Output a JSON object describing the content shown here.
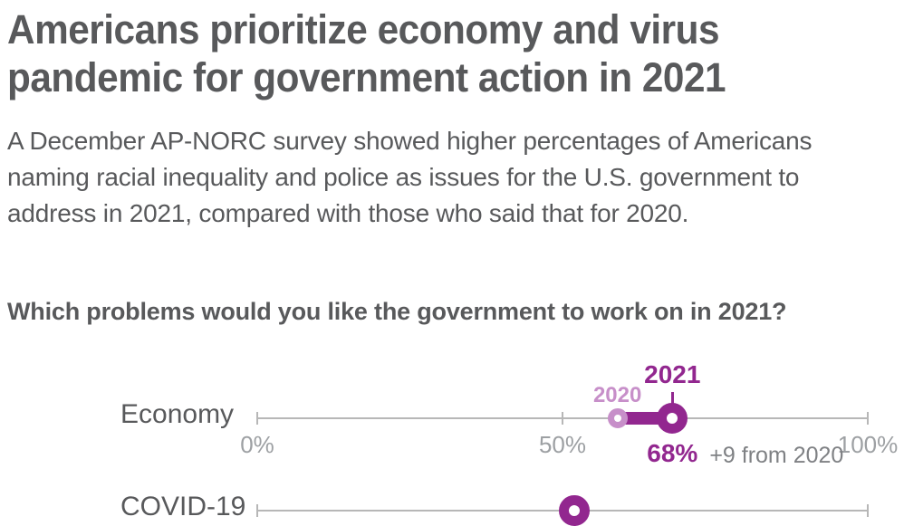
{
  "header": {
    "title_lines": [
      "Americans prioritize economy and virus",
      "pandemic for government action in 2021"
    ],
    "subtitle_lines": [
      "A December AP-NORC survey showed higher percentages of Americans",
      "naming racial inequality and police as issues for the U.S. government to",
      "address in 2021, compared with those who said that for 2020."
    ]
  },
  "chart_data": {
    "type": "dumbbell",
    "title": "Which problems would you like the government to work on in 2021?",
    "axis": {
      "min": 0,
      "max": 100,
      "tick_values": [
        0,
        50,
        100
      ],
      "tick_labels": [
        "0%",
        "50%",
        "100%"
      ]
    },
    "legend": {
      "year_2020_label": "2020",
      "year_2021_label": "2021"
    },
    "colors": {
      "purple_2021": "#92278f",
      "purple_2020": "#c78fc9",
      "axis_gray": "#b7b7b7",
      "tick_text_gray": "#9da0a3",
      "change_text_gray": "#7f8184",
      "body_text_gray": "#58595b"
    },
    "rows": [
      {
        "label": "Economy",
        "value_2020": 59,
        "value_2021": 68,
        "value_label": "68%",
        "change_label": "+9 from 2020",
        "show_axis_labels": true,
        "show_year_labels": true
      },
      {
        "label": "COVID-19",
        "value_2021": 52,
        "partially_visible": true,
        "show_axis_labels": false,
        "show_year_labels": false
      }
    ]
  }
}
